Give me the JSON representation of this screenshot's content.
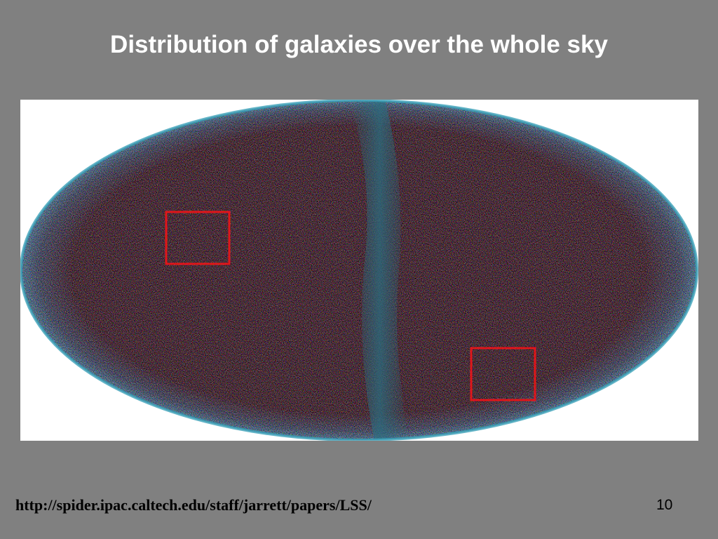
{
  "slide": {
    "title": "Distribution of galaxies over the whole sky",
    "footer_url": "http://spider.ipac.caltech.edu/staff/jarrett/papers/LSS/",
    "page_number": "10"
  }
}
